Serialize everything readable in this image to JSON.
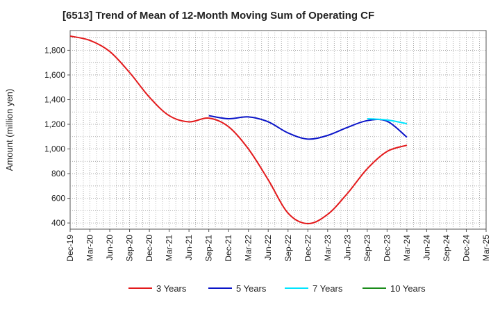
{
  "chart_data": {
    "type": "line",
    "title": "[6513]  Trend of Mean of 12-Month Moving Sum of Operating CF",
    "ylabel": "Amount (million yen)",
    "xlabel": "",
    "ylim": [
      350,
      1960
    ],
    "yticks": [
      400,
      600,
      800,
      1000,
      1200,
      1400,
      1600,
      1800
    ],
    "ytick_labels": [
      "400",
      "600",
      "800",
      "1,000",
      "1,200",
      "1,400",
      "1,600",
      "1,800"
    ],
    "categories": [
      "Dec-19",
      "Mar-20",
      "Jun-20",
      "Sep-20",
      "Dec-20",
      "Mar-21",
      "Jun-21",
      "Sep-21",
      "Dec-21",
      "Mar-22",
      "Jun-22",
      "Sep-22",
      "Dec-22",
      "Mar-23",
      "Jun-23",
      "Sep-23",
      "Dec-23",
      "Mar-24",
      "Jun-24",
      "Sep-24",
      "Dec-24",
      "Mar-25"
    ],
    "grid": true,
    "legend_position": "bottom",
    "series": [
      {
        "name": "3 Years",
        "color": "#e31a1c",
        "values": [
          1915,
          1880,
          1790,
          1620,
          1420,
          1270,
          1220,
          1250,
          1180,
          1000,
          750,
          480,
          395,
          470,
          640,
          840,
          980,
          1030,
          null,
          null,
          null,
          null
        ]
      },
      {
        "name": "5 Years",
        "color": "#0a14c8",
        "values": [
          null,
          null,
          null,
          null,
          null,
          null,
          null,
          1270,
          1245,
          1260,
          1220,
          1130,
          1080,
          1110,
          1175,
          1230,
          1225,
          1095,
          null,
          null,
          null,
          null
        ]
      },
      {
        "name": "7 Years",
        "color": "#00e5ff",
        "values": [
          null,
          null,
          null,
          null,
          null,
          null,
          null,
          null,
          null,
          null,
          null,
          null,
          null,
          null,
          null,
          1245,
          1235,
          1205,
          null,
          null,
          null,
          null
        ]
      },
      {
        "name": "10 Years",
        "color": "#1a8c1a",
        "values": [
          null,
          null,
          null,
          null,
          null,
          null,
          null,
          null,
          null,
          null,
          null,
          null,
          null,
          null,
          null,
          null,
          null,
          null,
          null,
          null,
          null,
          null
        ]
      }
    ]
  }
}
